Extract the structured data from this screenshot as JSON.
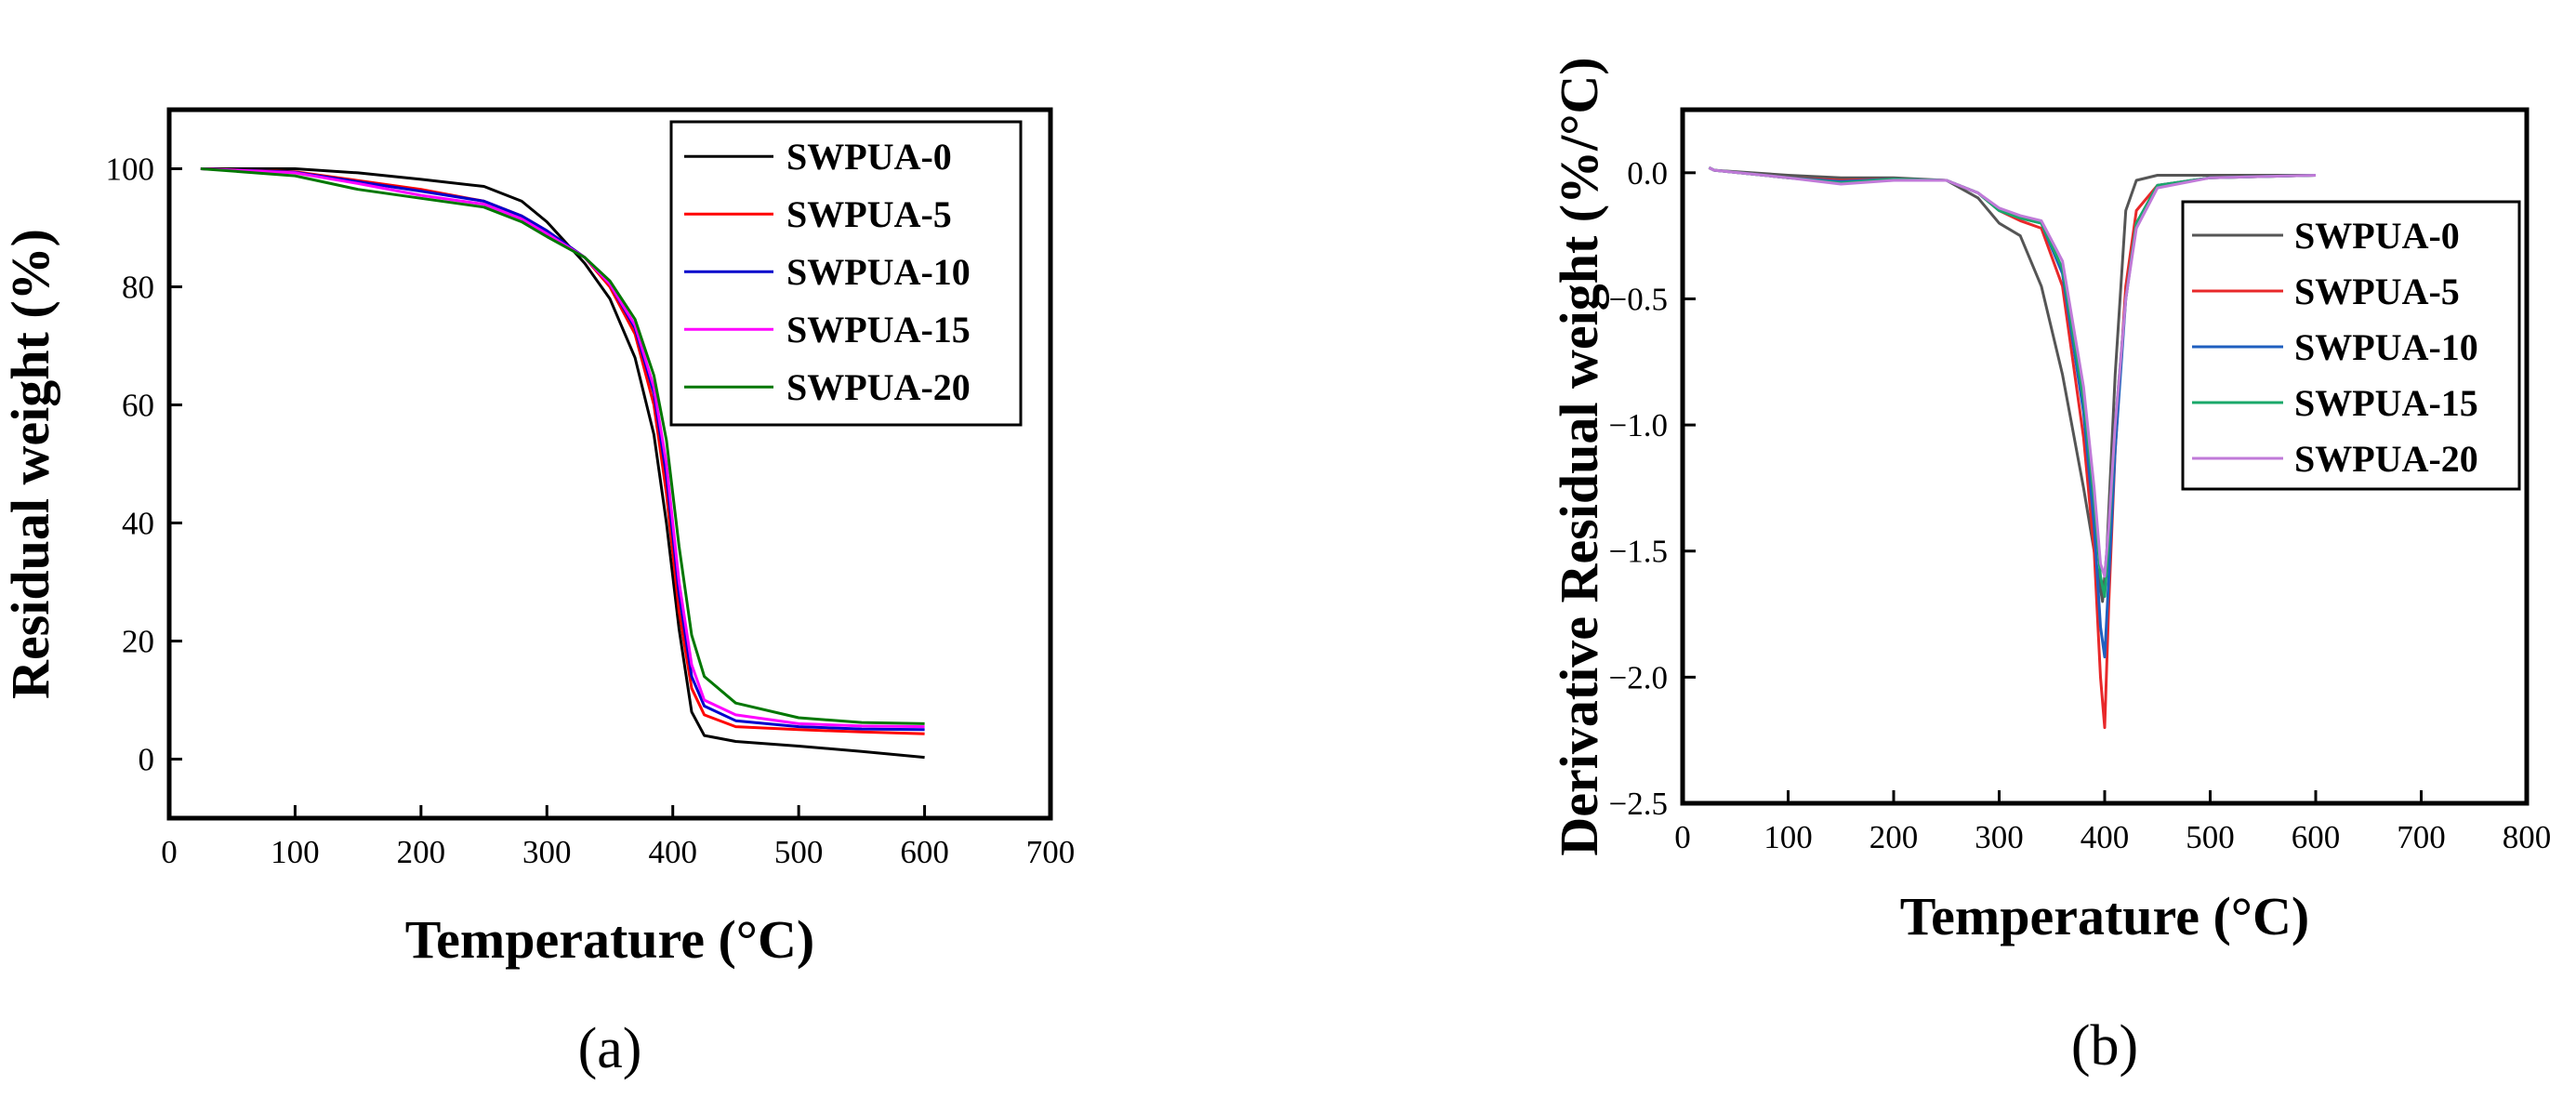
{
  "chart_data": [
    {
      "type": "line",
      "panel": "(a)",
      "xlabel": "Temperature (°C)",
      "ylabel": "Residual weight (%)",
      "xlim": [
        0,
        700
      ],
      "ylim": [
        -10,
        110
      ],
      "xticks": [
        0,
        100,
        200,
        300,
        400,
        500,
        600,
        700
      ],
      "yticks": [
        0,
        20,
        40,
        60,
        80,
        100
      ],
      "legend_position": "top-right",
      "grid": false,
      "series": [
        {
          "name": "SWPUA-0",
          "color": "#000000",
          "points": [
            [
              25,
              100
            ],
            [
              100,
              100
            ],
            [
              150,
              99.3
            ],
            [
              200,
              98.2
            ],
            [
              250,
              97
            ],
            [
              280,
              94.5
            ],
            [
              300,
              91
            ],
            [
              330,
              84
            ],
            [
              350,
              78
            ],
            [
              370,
              68
            ],
            [
              385,
              55
            ],
            [
              395,
              40
            ],
            [
              405,
              22
            ],
            [
              415,
              8
            ],
            [
              425,
              4
            ],
            [
              450,
              3
            ],
            [
              500,
              2.2
            ],
            [
              550,
              1.3
            ],
            [
              600,
              0.3
            ]
          ]
        },
        {
          "name": "SWPUA-5",
          "color": "#ff0000",
          "points": [
            [
              25,
              100
            ],
            [
              100,
              99.5
            ],
            [
              150,
              98
            ],
            [
              200,
              96.5
            ],
            [
              250,
              94.5
            ],
            [
              280,
              92
            ],
            [
              300,
              89.5
            ],
            [
              330,
              85
            ],
            [
              350,
              80
            ],
            [
              370,
              72
            ],
            [
              385,
              60
            ],
            [
              395,
              45
            ],
            [
              405,
              25
            ],
            [
              415,
              12
            ],
            [
              425,
              7.5
            ],
            [
              450,
              5.5
            ],
            [
              500,
              5
            ],
            [
              550,
              4.6
            ],
            [
              600,
              4.3
            ]
          ]
        },
        {
          "name": "SWPUA-10",
          "color": "#0000cc",
          "points": [
            [
              25,
              100
            ],
            [
              100,
              99.4
            ],
            [
              150,
              97.8
            ],
            [
              200,
              96.2
            ],
            [
              250,
              94.5
            ],
            [
              280,
              92
            ],
            [
              300,
              89.5
            ],
            [
              330,
              85
            ],
            [
              350,
              80.5
            ],
            [
              370,
              73
            ],
            [
              385,
              62
            ],
            [
              395,
              48
            ],
            [
              405,
              28
            ],
            [
              415,
              14
            ],
            [
              425,
              9
            ],
            [
              450,
              6.5
            ],
            [
              500,
              5.5
            ],
            [
              550,
              5.1
            ],
            [
              600,
              5
            ]
          ]
        },
        {
          "name": "SWPUA-15",
          "color": "#ff00ff",
          "points": [
            [
              25,
              100
            ],
            [
              100,
              99.3
            ],
            [
              150,
              97.5
            ],
            [
              200,
              95.5
            ],
            [
              250,
              94
            ],
            [
              280,
              91.5
            ],
            [
              300,
              89
            ],
            [
              330,
              85
            ],
            [
              350,
              80.5
            ],
            [
              370,
              73.5
            ],
            [
              385,
              63
            ],
            [
              395,
              50
            ],
            [
              405,
              30
            ],
            [
              415,
              16
            ],
            [
              425,
              10
            ],
            [
              450,
              7.5
            ],
            [
              500,
              6
            ],
            [
              550,
              5.6
            ],
            [
              600,
              5.5
            ]
          ]
        },
        {
          "name": "SWPUA-20",
          "color": "#007700",
          "points": [
            [
              25,
              100
            ],
            [
              100,
              98.8
            ],
            [
              150,
              96.5
            ],
            [
              200,
              95
            ],
            [
              250,
              93.5
            ],
            [
              280,
              91
            ],
            [
              300,
              88.5
            ],
            [
              330,
              85
            ],
            [
              350,
              81
            ],
            [
              370,
              74.5
            ],
            [
              385,
              65
            ],
            [
              395,
              54
            ],
            [
              405,
              36
            ],
            [
              415,
              21
            ],
            [
              425,
              14
            ],
            [
              450,
              9.5
            ],
            [
              500,
              7
            ],
            [
              550,
              6.2
            ],
            [
              600,
              6
            ]
          ]
        }
      ]
    },
    {
      "type": "line",
      "panel": "(b)",
      "xlabel": "Temperature (°C)",
      "ylabel": "Derivative Residual weight (%/°C)",
      "xlim": [
        0,
        800
      ],
      "ylim": [
        -2.5,
        0.25
      ],
      "xticks": [
        0,
        100,
        200,
        300,
        400,
        500,
        600,
        700,
        800
      ],
      "yticks": [
        0.0,
        -0.5,
        -1.0,
        -1.5,
        -2.0,
        -2.5
      ],
      "ytick_labels": [
        "0.0",
        "−0.5",
        "−1.0",
        "−1.5",
        "−2.0",
        "−2.5"
      ],
      "legend_position": "right",
      "grid": false,
      "series": [
        {
          "name": "SWPUA-0",
          "color": "#555555",
          "points": [
            [
              25,
              0.02
            ],
            [
              30,
              0.01
            ],
            [
              100,
              -0.01
            ],
            [
              150,
              -0.02
            ],
            [
              200,
              -0.02
            ],
            [
              250,
              -0.03
            ],
            [
              280,
              -0.1
            ],
            [
              300,
              -0.2
            ],
            [
              320,
              -0.25
            ],
            [
              340,
              -0.45
            ],
            [
              360,
              -0.8
            ],
            [
              380,
              -1.25
            ],
            [
              390,
              -1.5
            ],
            [
              398,
              -1.7
            ],
            [
              402,
              -1.5
            ],
            [
              410,
              -0.8
            ],
            [
              420,
              -0.15
            ],
            [
              430,
              -0.03
            ],
            [
              450,
              -0.01
            ],
            [
              500,
              -0.01
            ],
            [
              600,
              -0.01
            ]
          ]
        },
        {
          "name": "SWPUA-5",
          "color": "#e8282a",
          "points": [
            [
              25,
              0.02
            ],
            [
              30,
              0.01
            ],
            [
              100,
              -0.02
            ],
            [
              150,
              -0.03
            ],
            [
              200,
              -0.025
            ],
            [
              250,
              -0.03
            ],
            [
              280,
              -0.08
            ],
            [
              300,
              -0.15
            ],
            [
              320,
              -0.19
            ],
            [
              340,
              -0.22
            ],
            [
              360,
              -0.45
            ],
            [
              380,
              -1.05
            ],
            [
              390,
              -1.5
            ],
            [
              396,
              -2.0
            ],
            [
              400,
              -2.2
            ],
            [
              404,
              -1.7
            ],
            [
              410,
              -1.1
            ],
            [
              420,
              -0.45
            ],
            [
              430,
              -0.15
            ],
            [
              450,
              -0.05
            ],
            [
              500,
              -0.02
            ],
            [
              600,
              -0.01
            ]
          ]
        },
        {
          "name": "SWPUA-10",
          "color": "#1f5fbf",
          "points": [
            [
              25,
              0.02
            ],
            [
              30,
              0.01
            ],
            [
              100,
              -0.02
            ],
            [
              150,
              -0.035
            ],
            [
              200,
              -0.025
            ],
            [
              250,
              -0.03
            ],
            [
              280,
              -0.08
            ],
            [
              300,
              -0.15
            ],
            [
              320,
              -0.18
            ],
            [
              340,
              -0.2
            ],
            [
              360,
              -0.4
            ],
            [
              380,
              -0.95
            ],
            [
              390,
              -1.4
            ],
            [
              396,
              -1.8
            ],
            [
              400,
              -1.92
            ],
            [
              404,
              -1.6
            ],
            [
              410,
              -1.1
            ],
            [
              420,
              -0.5
            ],
            [
              430,
              -0.2
            ],
            [
              450,
              -0.05
            ],
            [
              500,
              -0.02
            ],
            [
              600,
              -0.01
            ]
          ]
        },
        {
          "name": "SWPUA-15",
          "color": "#1aa86a",
          "points": [
            [
              25,
              0.02
            ],
            [
              30,
              0.01
            ],
            [
              100,
              -0.02
            ],
            [
              150,
              -0.04
            ],
            [
              200,
              -0.025
            ],
            [
              250,
              -0.03
            ],
            [
              280,
              -0.08
            ],
            [
              300,
              -0.15
            ],
            [
              320,
              -0.18
            ],
            [
              340,
              -0.2
            ],
            [
              360,
              -0.38
            ],
            [
              380,
              -0.9
            ],
            [
              390,
              -1.3
            ],
            [
              396,
              -1.6
            ],
            [
              400,
              -1.68
            ],
            [
              404,
              -1.45
            ],
            [
              410,
              -1.0
            ],
            [
              420,
              -0.5
            ],
            [
              430,
              -0.2
            ],
            [
              450,
              -0.05
            ],
            [
              500,
              -0.02
            ],
            [
              600,
              -0.01
            ]
          ]
        },
        {
          "name": "SWPUA-20",
          "color": "#c07ad8",
          "points": [
            [
              25,
              0.02
            ],
            [
              30,
              0.01
            ],
            [
              100,
              -0.02
            ],
            [
              150,
              -0.045
            ],
            [
              200,
              -0.03
            ],
            [
              250,
              -0.03
            ],
            [
              280,
              -0.08
            ],
            [
              300,
              -0.14
            ],
            [
              320,
              -0.17
            ],
            [
              340,
              -0.19
            ],
            [
              360,
              -0.35
            ],
            [
              380,
              -0.85
            ],
            [
              390,
              -1.25
            ],
            [
              396,
              -1.55
            ],
            [
              400,
              -1.6
            ],
            [
              404,
              -1.4
            ],
            [
              410,
              -1.0
            ],
            [
              420,
              -0.5
            ],
            [
              430,
              -0.22
            ],
            [
              450,
              -0.06
            ],
            [
              500,
              -0.02
            ],
            [
              600,
              -0.01
            ]
          ]
        }
      ]
    }
  ]
}
